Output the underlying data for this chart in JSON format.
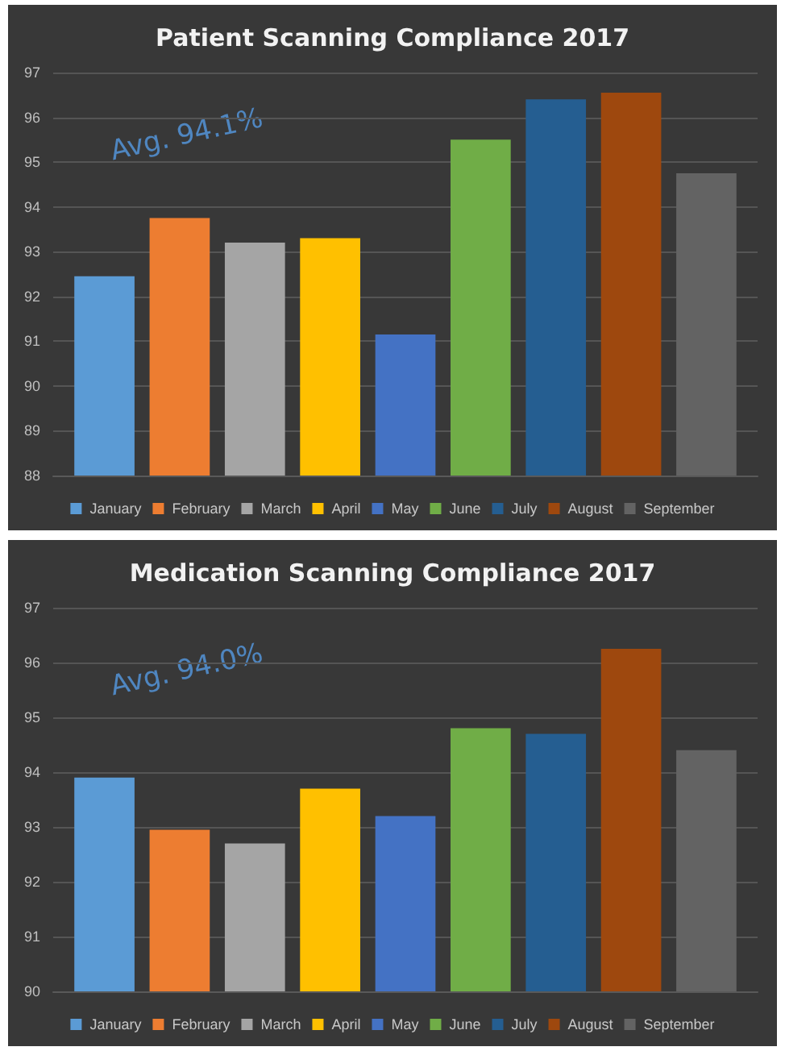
{
  "chart_data": [
    {
      "type": "bar",
      "title": "Patient Scanning Compliance 2017",
      "categories": [
        null
      ],
      "series": [
        {
          "name": "January",
          "color": "#5b9bd5",
          "values": [
            92.45
          ]
        },
        {
          "name": "February",
          "color": "#ed7d31",
          "values": [
            93.75
          ]
        },
        {
          "name": "March",
          "color": "#a5a5a5",
          "values": [
            93.2
          ]
        },
        {
          "name": "April",
          "color": "#ffc000",
          "values": [
            93.3
          ]
        },
        {
          "name": "May",
          "color": "#4472c4",
          "values": [
            91.15
          ]
        },
        {
          "name": "June",
          "color": "#70ad47",
          "values": [
            95.5
          ]
        },
        {
          "name": "July",
          "color": "#255e91",
          "values": [
            96.4
          ]
        },
        {
          "name": "August",
          "color": "#9e480e",
          "values": [
            96.55
          ]
        },
        {
          "name": "September",
          "color": "#636363",
          "values": [
            94.75
          ]
        }
      ],
      "ylim": [
        88,
        97
      ],
      "yticks": [
        88,
        89,
        90,
        91,
        92,
        93,
        94,
        95,
        96,
        97
      ],
      "grid": "y",
      "legend": "bottom",
      "annotations": [
        "Avg. 94.1%"
      ]
    },
    {
      "type": "bar",
      "title": "Medication Scanning Compliance 2017",
      "categories": [
        null
      ],
      "series": [
        {
          "name": "January",
          "color": "#5b9bd5",
          "values": [
            93.9
          ]
        },
        {
          "name": "February",
          "color": "#ed7d31",
          "values": [
            92.95
          ]
        },
        {
          "name": "March",
          "color": "#a5a5a5",
          "values": [
            92.7
          ]
        },
        {
          "name": "April",
          "color": "#ffc000",
          "values": [
            93.7
          ]
        },
        {
          "name": "May",
          "color": "#4472c4",
          "values": [
            93.2
          ]
        },
        {
          "name": "June",
          "color": "#70ad47",
          "values": [
            94.8
          ]
        },
        {
          "name": "July",
          "color": "#255e91",
          "values": [
            94.7
          ]
        },
        {
          "name": "August",
          "color": "#9e480e",
          "values": [
            96.25
          ]
        },
        {
          "name": "September",
          "color": "#636363",
          "values": [
            94.4
          ]
        }
      ],
      "ylim": [
        90,
        97
      ],
      "yticks": [
        90,
        91,
        92,
        93,
        94,
        95,
        96,
        97
      ],
      "grid": "y",
      "legend": "bottom",
      "annotations": [
        "Avg. 94.0%"
      ]
    }
  ]
}
